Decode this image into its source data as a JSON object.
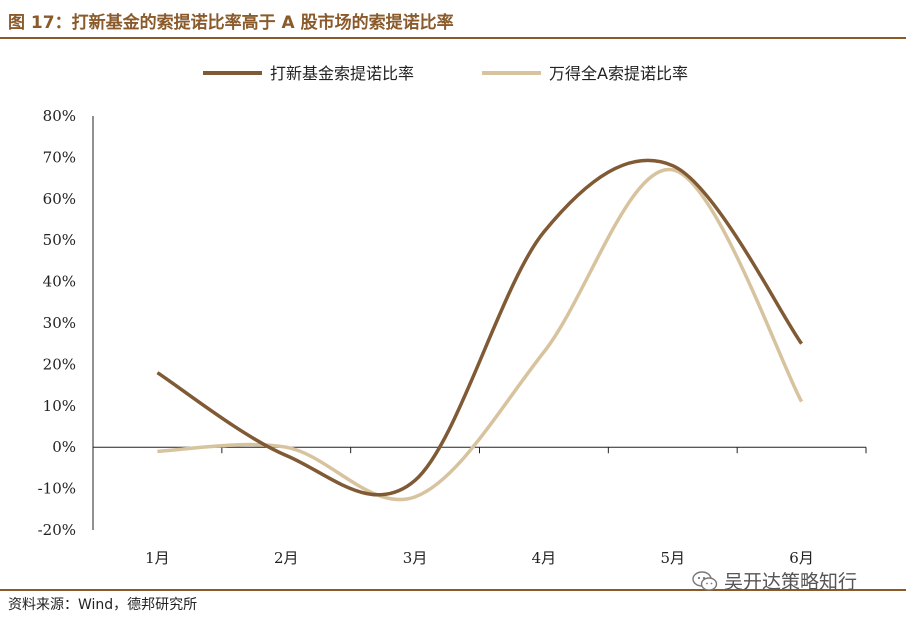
{
  "title": "图 17：打新基金的索提诺比率高于 A 股市场的索提诺比率",
  "source": "资料来源：Wind，德邦研究所",
  "watermark": "吴开达策略知行",
  "colors": {
    "accent": "#8a5a2b",
    "series1": "#7f5a35",
    "series2": "#d8c39f"
  },
  "chart_data": {
    "type": "line",
    "categories": [
      "1月",
      "2月",
      "3月",
      "4月",
      "5月",
      "6月"
    ],
    "ylim": [
      -20,
      80
    ],
    "yticks": [
      -20,
      -10,
      0,
      10,
      20,
      30,
      40,
      50,
      60,
      70,
      80
    ],
    "ytick_labels": [
      "-20%",
      "-10%",
      "0%",
      "10%",
      "20%",
      "30%",
      "40%",
      "50%",
      "60%",
      "70%",
      "80%"
    ],
    "legend": "top",
    "series": [
      {
        "name": "打新基金索提诺比率",
        "values": [
          18,
          -2,
          -8,
          52,
          68,
          25
        ]
      },
      {
        "name": "万得全A索提诺比率",
        "values": [
          -1,
          0,
          -12,
          23,
          67,
          11
        ]
      }
    ]
  }
}
